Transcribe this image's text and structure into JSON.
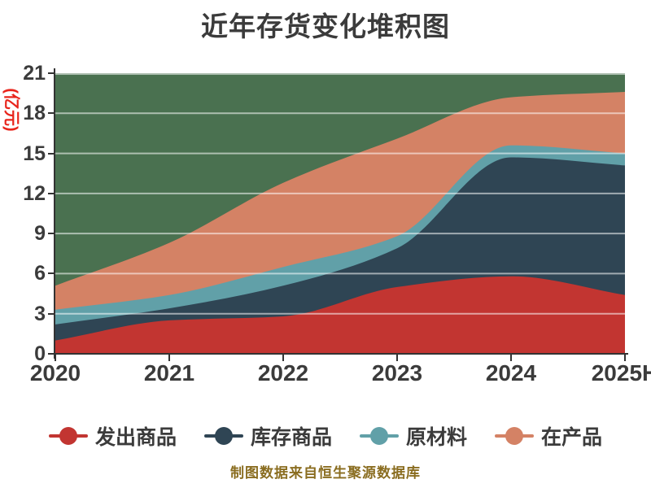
{
  "title": {
    "text": "近年存货变化堆积图"
  },
  "footer": {
    "text": "制图数据来自恒生聚源数据库"
  },
  "colors": {
    "title": "#3b3b3b",
    "tick_label": "#3b3b3b",
    "axis": "#333333",
    "ylabel": "#e8241b",
    "footer": "#8a6d20",
    "plot_background": "#4a7150",
    "gridline": "rgba(255,255,255,0.55)",
    "legend_text": "#3b3b3b"
  },
  "chart_data": {
    "type": "area",
    "stacked": true,
    "smooth": true,
    "grid": true,
    "legend_position": "bottom",
    "title": "近年存货变化堆积图",
    "xlabel": "",
    "ylabel": "(亿元)",
    "ylim": [
      0,
      21
    ],
    "yticks": [
      0,
      3,
      6,
      9,
      12,
      15,
      18,
      21
    ],
    "categories": [
      "2020",
      "2021",
      "2022",
      "2023",
      "2024",
      "2025H"
    ],
    "series": [
      {
        "name": "发出商品",
        "color": "#c23531",
        "values": [
          1.0,
          2.5,
          2.8,
          5.0,
          5.8,
          4.4
        ]
      },
      {
        "name": "库存商品",
        "color": "#2f4554",
        "values": [
          1.2,
          0.9,
          2.3,
          2.9,
          8.9,
          9.7
        ]
      },
      {
        "name": "原材料",
        "color": "#61a0a8",
        "values": [
          1.1,
          1.0,
          1.4,
          0.9,
          0.9,
          0.9
        ]
      },
      {
        "name": "在产品",
        "color": "#d48265",
        "values": [
          1.8,
          3.9,
          6.3,
          7.3,
          3.6,
          4.6
        ]
      }
    ],
    "cumulative_tops": {
      "2020": [
        1.0,
        2.2,
        3.3,
        5.1
      ],
      "2021": [
        2.5,
        3.4,
        4.4,
        8.3
      ],
      "2022": [
        2.8,
        5.1,
        6.5,
        12.8
      ],
      "2023": [
        5.0,
        7.9,
        8.8,
        16.1
      ],
      "2024": [
        5.8,
        14.7,
        15.6,
        19.2
      ],
      "2025H": [
        4.4,
        14.1,
        15.0,
        19.6
      ]
    }
  }
}
